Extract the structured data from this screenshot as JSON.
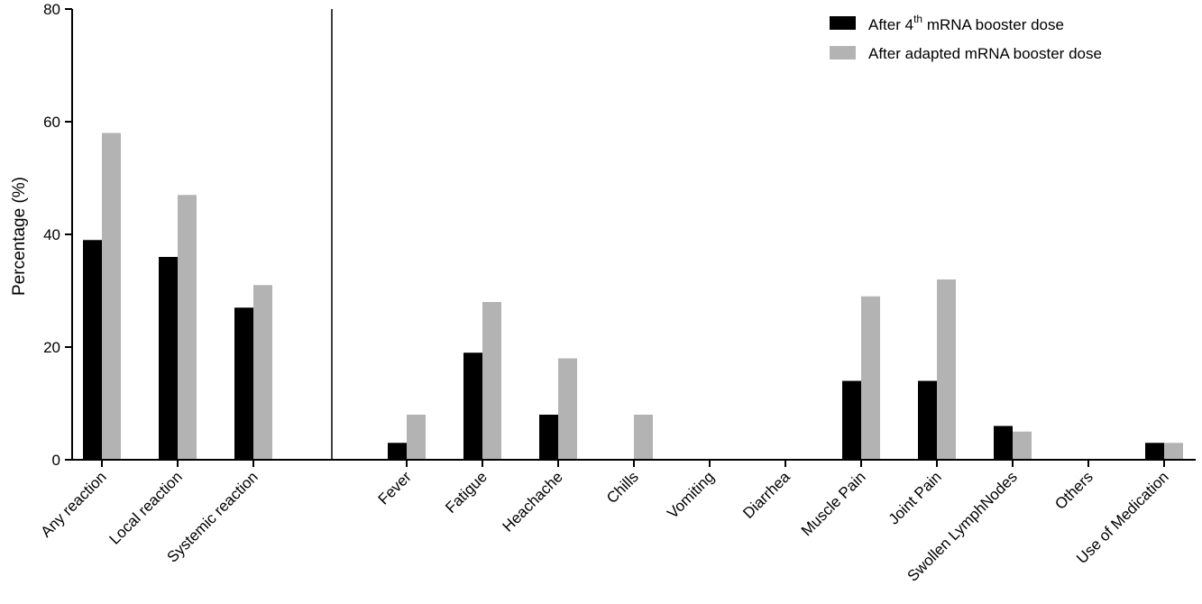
{
  "chart_data": {
    "type": "bar",
    "title": "",
    "xlabel": "",
    "ylabel": "Percentage (%)",
    "ylim": [
      0,
      80
    ],
    "yticks": [
      0,
      20,
      40,
      60,
      80
    ],
    "grid": false,
    "legend_position": "top-right",
    "divider_after_category": "Systemic reaction",
    "categories": [
      "Any reaction",
      "Local reaction",
      "Systemic reaction",
      "Fever",
      "Fatigue",
      "Heachache",
      "Chills",
      "Vomiting",
      "Diarrhea",
      "Muscle Pain",
      "Joint Pain",
      "Swollen LymphNodes",
      "Others",
      "Use of Medication"
    ],
    "series": [
      {
        "name": "After 4th mRNA booster dose",
        "name_main": "After 4",
        "name_sup": "th",
        "name_rest": " mRNA booster dose",
        "color": "#000000",
        "values": [
          39,
          36,
          27,
          3,
          19,
          8,
          0,
          0,
          0,
          14,
          14,
          6,
          0,
          3
        ]
      },
      {
        "name": "After adapted mRNA booster dose",
        "color": "#b3b3b3",
        "values": [
          58,
          47,
          31,
          8,
          28,
          18,
          8,
          0,
          0,
          29,
          32,
          5,
          0,
          3
        ]
      }
    ]
  }
}
